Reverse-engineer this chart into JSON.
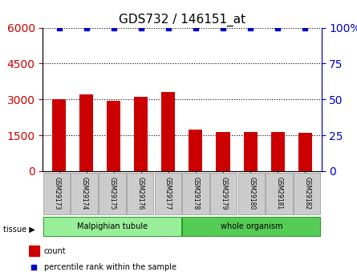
{
  "title": "GDS732 / 146151_at",
  "samples": [
    "GSM29173",
    "GSM29174",
    "GSM29175",
    "GSM29176",
    "GSM29177",
    "GSM29178",
    "GSM29179",
    "GSM29180",
    "GSM29181",
    "GSM29182"
  ],
  "counts": [
    3000,
    3200,
    2950,
    3100,
    3300,
    1750,
    1650,
    1650,
    1650,
    1600
  ],
  "percentiles": [
    100,
    100,
    100,
    100,
    100,
    100,
    100,
    100,
    100,
    100
  ],
  "bar_color": "#cc0000",
  "dot_color": "#0000cc",
  "ylim_left": [
    0,
    6000
  ],
  "ylim_right": [
    0,
    100
  ],
  "yticks_left": [
    0,
    1500,
    3000,
    4500,
    6000
  ],
  "yticks_right": [
    0,
    25,
    50,
    75,
    100
  ],
  "groups": [
    {
      "label": "Malpighian tubule",
      "start": 0,
      "end": 5,
      "color": "#99ee99"
    },
    {
      "label": "whole organism",
      "start": 5,
      "end": 10,
      "color": "#55cc55"
    }
  ],
  "tissue_label": "tissue",
  "legend_count_label": "count",
  "legend_percentile_label": "percentile rank within the sample",
  "grid_color": "#000000",
  "background_color": "#ffffff",
  "xlabel_area_color": "#cccccc",
  "xlabel_area_border": "#aaaaaa"
}
